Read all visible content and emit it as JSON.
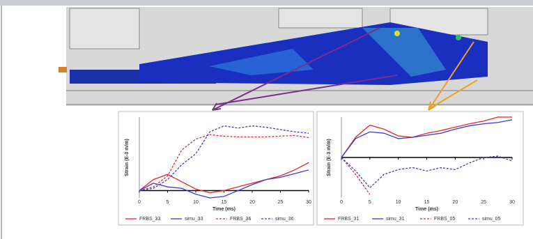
{
  "chart_data": [
    {
      "type": "line",
      "x_label": "Time (ms)",
      "y_label": "Strain (E-3 m/m)",
      "x": [
        0,
        2.5,
        5,
        7.5,
        10,
        12.5,
        15,
        17.5,
        20,
        22.5,
        25,
        27.5,
        30
      ],
      "xlim": [
        0,
        30
      ],
      "xticks": [
        0,
        5,
        10,
        15,
        20,
        25,
        30
      ],
      "ylim": [
        -1,
        10
      ],
      "series": [
        {
          "name": "FRBS_33",
          "color": "#e8262b",
          "dash": "solid",
          "values": [
            0,
            1.5,
            2.2,
            1.2,
            0.2,
            -0.3,
            0,
            0.5,
            1,
            1.5,
            2,
            2.8,
            3.8
          ]
        },
        {
          "name": "simu_33",
          "color": "#3b3bd6",
          "dash": "solid",
          "values": [
            0,
            1,
            0.5,
            0.3,
            -0.5,
            -1,
            -0.8,
            0,
            0.8,
            1.5,
            1.8,
            2.3,
            2.8
          ]
        },
        {
          "name": "FRBS_36",
          "color": "#e8262b",
          "dash": "dashed",
          "values": [
            0,
            0.5,
            2,
            5.5,
            7,
            7.6,
            7.4,
            7.3,
            7.3,
            7.3,
            7.4,
            7.5,
            7.2
          ]
        },
        {
          "name": "simu_36",
          "color": "#3b3bd6",
          "dash": "dashed",
          "values": [
            0,
            0.3,
            1.5,
            3.5,
            5,
            8,
            8.8,
            8.5,
            8.8,
            8.6,
            8.3,
            8,
            7.8
          ]
        }
      ]
    },
    {
      "type": "line",
      "x_label": "Time (ms)",
      "y_label": "Strain (E-3 m/m)",
      "x": [
        0,
        2.5,
        5,
        7.5,
        10,
        12.5,
        15,
        17.5,
        20,
        22.5,
        25,
        27.5,
        30
      ],
      "xlim": [
        0,
        30
      ],
      "xticks": [
        0,
        5,
        10,
        15,
        20,
        25,
        30
      ],
      "ylim": [
        -6,
        6
      ],
      "series": [
        {
          "name": "FRBS_31",
          "color": "#e8262b",
          "dash": "solid",
          "values": [
            0,
            3,
            4.8,
            4.2,
            3.2,
            3,
            3.6,
            4,
            4.5,
            5,
            5.4,
            6,
            6
          ]
        },
        {
          "name": "simu_31",
          "color": "#3b3bd6",
          "dash": "solid",
          "values": [
            0,
            2.8,
            3.8,
            3.6,
            2.8,
            3,
            3.3,
            3.6,
            4.2,
            4.7,
            5,
            5.2,
            5.6
          ]
        },
        {
          "name": "FRBS_05",
          "color": "#e8262b",
          "dash": "dashed",
          "values": [
            0,
            -2.5,
            -5.5,
            null,
            null,
            null,
            null,
            null,
            null,
            null,
            null,
            null,
            null
          ]
        },
        {
          "name": "simu_05",
          "color": "#3b3bd6",
          "dash": "dashed",
          "values": [
            0,
            -2,
            -4.5,
            -2.5,
            -1.8,
            -1.5,
            -2,
            -1.5,
            -1.8,
            -0.8,
            0,
            0.2,
            -0.5
          ]
        }
      ]
    }
  ]
}
